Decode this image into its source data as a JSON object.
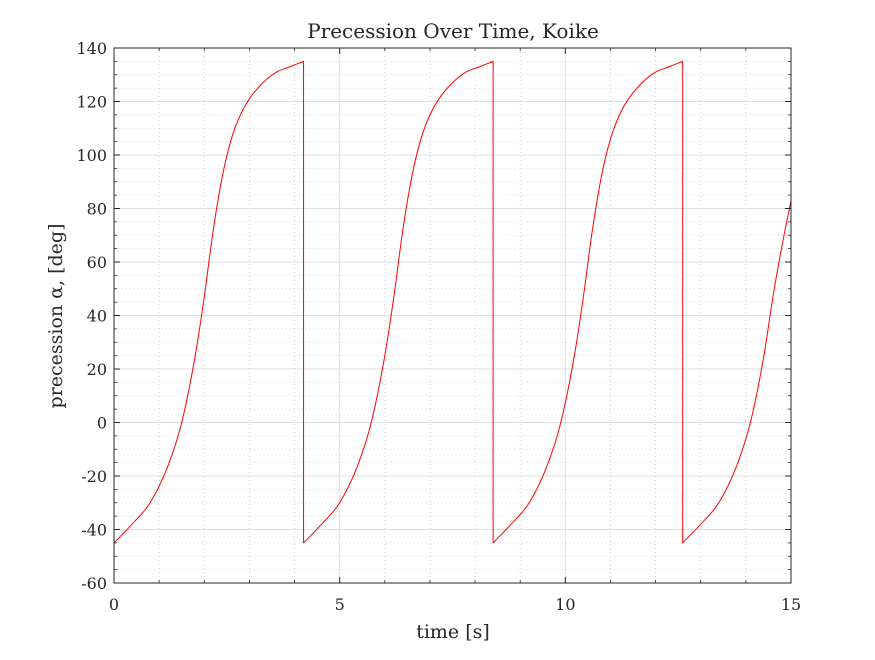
{
  "chart_data": {
    "type": "line",
    "title": "Precession Over Time, Koike",
    "xlabel": "time [s]",
    "ylabel": "precession α, [deg]",
    "xlim": [
      0,
      15
    ],
    "ylim": [
      -60,
      140
    ],
    "xticks": [
      0,
      5,
      10,
      15
    ],
    "yticks": [
      -60,
      -40,
      -20,
      0,
      20,
      40,
      60,
      80,
      100,
      120,
      140
    ],
    "xtick_labels": [
      "0",
      "5",
      "10",
      "15"
    ],
    "ytick_labels": [
      "-60",
      "-40",
      "-20",
      "0",
      "20",
      "40",
      "60",
      "80",
      "100",
      "120",
      "140"
    ],
    "grid": true,
    "minor_grid": true,
    "series": [
      {
        "color": "#ff0000",
        "x": [
          0,
          0.4,
          0.8,
          1.2,
          1.5,
          1.8,
          2.0,
          2.2,
          2.4,
          2.6,
          2.8,
          3.0,
          3.3,
          3.6,
          3.9,
          4.2,
          4.2,
          4.6,
          5.0,
          5.4,
          5.7,
          6.0,
          6.2,
          6.4,
          6.6,
          6.8,
          7.0,
          7.2,
          7.5,
          7.8,
          8.1,
          8.4,
          8.4,
          8.8,
          9.2,
          9.6,
          9.9,
          10.2,
          10.4,
          10.6,
          10.8,
          11.0,
          11.2,
          11.4,
          11.7,
          12.0,
          12.3,
          12.6,
          12.6,
          13.0,
          13.4,
          13.8,
          14.1,
          14.4,
          14.6,
          14.8,
          15.0
        ],
        "y": [
          -45,
          -38,
          -30,
          -16,
          0,
          25,
          47,
          72,
          92,
          106,
          115,
          121,
          127,
          131,
          133,
          135,
          -45,
          -38,
          -30,
          -16,
          0,
          25,
          47,
          72,
          92,
          106,
          115,
          121,
          127,
          131,
          133,
          135,
          -45,
          -38,
          -30,
          -16,
          0,
          25,
          47,
          72,
          92,
          106,
          115,
          121,
          127,
          131,
          133,
          135,
          -45,
          -38,
          -30,
          -16,
          0,
          25,
          47,
          66,
          83
        ]
      }
    ]
  }
}
